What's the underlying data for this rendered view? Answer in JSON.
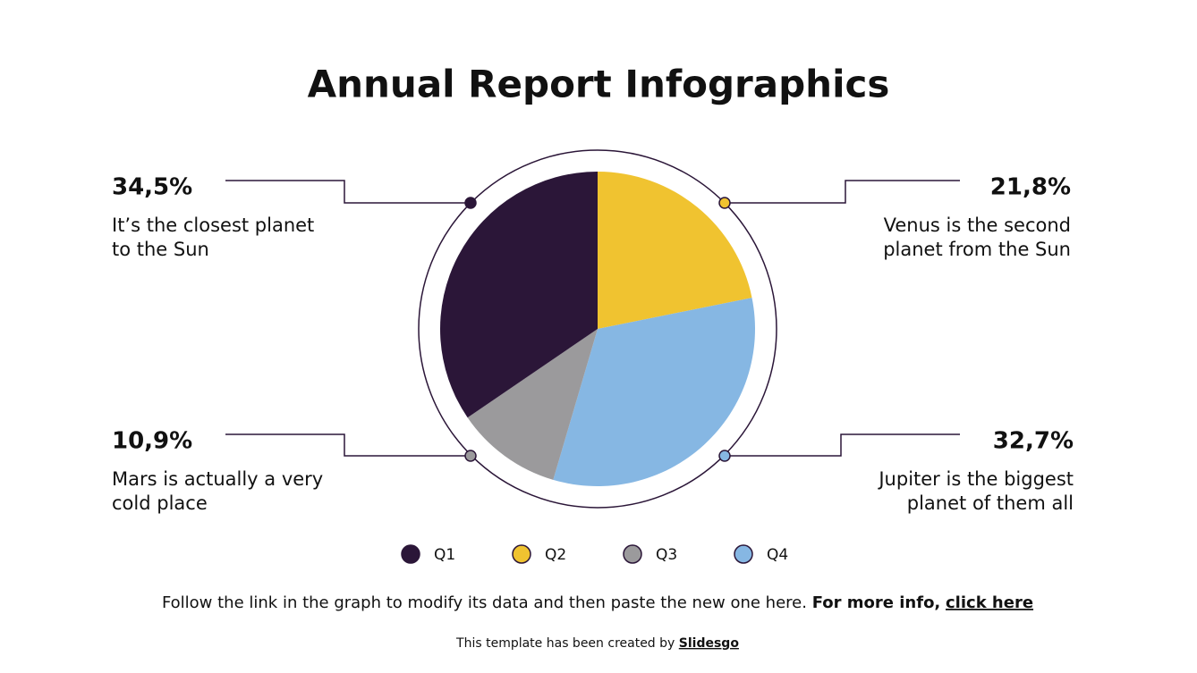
{
  "chart_data": {
    "type": "pie",
    "title": "Annual Report Infographics",
    "categories": [
      "Q1",
      "Q2",
      "Q3",
      "Q4"
    ],
    "values": [
      34.5,
      21.8,
      10.9,
      32.7
    ],
    "value_labels": [
      "34,5%",
      "21,8%",
      "10,9%",
      "32,7%"
    ],
    "colors": [
      "#2b1638",
      "#f0c330",
      "#9b9a9c",
      "#86b7e3"
    ],
    "descriptions": [
      [
        "It’s the closest planet",
        "to the Sun"
      ],
      [
        "Venus is the second",
        "planet from the Sun"
      ],
      [
        "Mars is actually a very",
        "cold place"
      ],
      [
        "Jupiter is the biggest",
        "planet of them all"
      ]
    ],
    "legend": "bottom"
  },
  "footer": {
    "note": "Follow the link in the graph to modify its data and then paste the new one here.",
    "info": "For more info,",
    "link": "click here",
    "credit": "This template has been created by",
    "brand": "Slidesgo"
  }
}
